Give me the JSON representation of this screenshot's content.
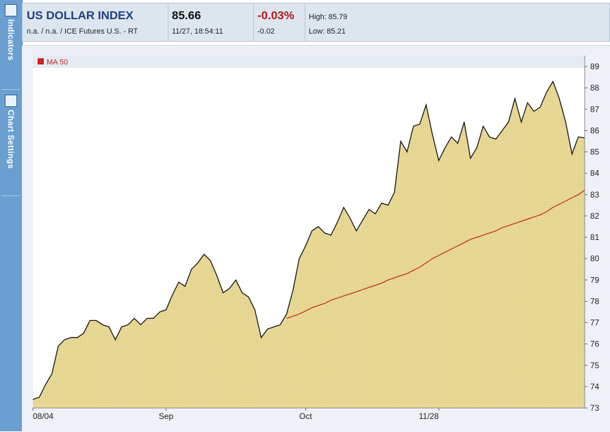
{
  "sidebar": {
    "tabs": [
      {
        "label": "Indicators",
        "icon": "indicators-icon"
      },
      {
        "label": "Chart Settings",
        "icon": "chart-settings-icon"
      }
    ]
  },
  "header": {
    "title": "US DOLLAR INDEX",
    "subtitle": "n.a. / n.a. / ICE Futures U.S. - RT",
    "last": "85.66",
    "time": "11/27, 18:54:11",
    "change_pct": "-0.03%",
    "change": "-0.02",
    "high": "High: 85.79",
    "low": "Low: 85.21"
  },
  "colors": {
    "area_fill": "#e8d996",
    "price_line": "#111111",
    "ma_line": "#cc1f1f",
    "plot_bg": "#ffffff"
  },
  "chart_data": {
    "type": "area",
    "legend": [
      {
        "label": "MA 50",
        "color": "#cc1f1f"
      }
    ],
    "legend_position": "top-left",
    "x_ticks": [
      {
        "label": "08/04",
        "index": 0
      },
      {
        "label": "Sep",
        "index": 21
      },
      {
        "label": "Oct",
        "index": 43
      },
      {
        "label": "11/28",
        "index": 64
      }
    ],
    "y_ticks": [
      73,
      74,
      75,
      76,
      77,
      78,
      79,
      80,
      81,
      82,
      83,
      84,
      85,
      86,
      87,
      88,
      89
    ],
    "ylim": [
      73,
      89
    ],
    "y_axis_side": "right",
    "series": [
      {
        "name": "price",
        "values": [
          73.4,
          73.5,
          74.1,
          74.6,
          75.9,
          76.2,
          76.3,
          76.3,
          76.5,
          77.1,
          77.1,
          76.9,
          76.8,
          76.2,
          76.8,
          76.9,
          77.2,
          76.9,
          77.2,
          77.2,
          77.5,
          77.6,
          78.3,
          78.9,
          78.7,
          79.5,
          79.8,
          80.2,
          79.9,
          79.2,
          78.4,
          78.6,
          79.0,
          78.4,
          78.2,
          77.6,
          76.3,
          76.7,
          76.8,
          76.9,
          77.4,
          78.5,
          80.0,
          80.6,
          81.3,
          81.5,
          81.2,
          81.1,
          81.7,
          82.4,
          81.9,
          81.3,
          81.8,
          82.3,
          82.1,
          82.6,
          82.5,
          83.1,
          85.5,
          85.0,
          86.2,
          86.3,
          87.2,
          85.8,
          84.6,
          85.2,
          85.7,
          85.4,
          86.4,
          84.7,
          85.2,
          86.2,
          85.7,
          85.6,
          86.0,
          86.4,
          87.5,
          86.4,
          87.3,
          86.9,
          87.1,
          87.8,
          88.3,
          87.5,
          86.4,
          84.9,
          85.7,
          85.66
        ]
      },
      {
        "name": "MA 50",
        "start_index": 40,
        "values": [
          77.2,
          77.3,
          77.4,
          77.55,
          77.7,
          77.8,
          77.9,
          78.05,
          78.15,
          78.25,
          78.35,
          78.45,
          78.55,
          78.65,
          78.75,
          78.85,
          79.0,
          79.1,
          79.2,
          79.3,
          79.45,
          79.6,
          79.8,
          80.0,
          80.15,
          80.3,
          80.45,
          80.6,
          80.75,
          80.9,
          81.0,
          81.1,
          81.2,
          81.3,
          81.45,
          81.55,
          81.65,
          81.75,
          81.85,
          81.95,
          82.05,
          82.2,
          82.4,
          82.55,
          82.7,
          82.85,
          83.0,
          83.2
        ]
      }
    ]
  }
}
